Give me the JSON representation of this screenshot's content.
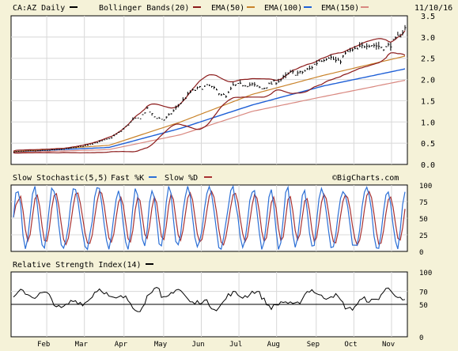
{
  "header": {
    "symbol_label": "CA:AZ Daily",
    "date": "11/10/16",
    "watermark": "©BigCharts.com"
  },
  "legend": {
    "price": [
      {
        "label": "Bollinger Bands(20)",
        "color": "#8b1a1a"
      },
      {
        "label": "EMA(50)",
        "color": "#c9832a"
      },
      {
        "label": "EMA(100)",
        "color": "#1e5fd6"
      },
      {
        "label": "EMA(150)",
        "color": "#d98880"
      }
    ],
    "stoch": {
      "title": "Slow Stochastic(5,5)",
      "fast_label": "Fast %K",
      "fast_color": "#2b6fd6",
      "slow_label": "Slow %D",
      "slow_color": "#a83232"
    },
    "rsi": {
      "title": "Relative Strength Index(14)",
      "color": "#000000"
    }
  },
  "months": [
    "Feb",
    "Mar",
    "Apr",
    "May",
    "Jun",
    "Jul",
    "Aug",
    "Sep",
    "Oct",
    "Nov"
  ],
  "chart_data": [
    {
      "type": "line",
      "name": "price-panel",
      "ylim": [
        0,
        3.5
      ],
      "yticks": [
        "0.0",
        "0.5",
        "1.0",
        "1.5",
        "2.0",
        "2.5",
        "3.0",
        "3.5"
      ],
      "grid": true,
      "x_ticks_months": [
        "Feb",
        "Mar",
        "Apr",
        "May",
        "Jun",
        "Jul",
        "Aug",
        "Sep",
        "Oct",
        "Nov"
      ],
      "price_waypoints": [
        [
          0,
          0.3
        ],
        [
          10,
          0.32
        ],
        [
          20,
          0.35
        ],
        [
          28,
          0.42
        ],
        [
          35,
          0.52
        ],
        [
          40,
          0.6
        ],
        [
          45,
          0.78
        ],
        [
          50,
          1.05
        ],
        [
          53,
          1.1
        ],
        [
          56,
          1.3
        ],
        [
          59,
          1.12
        ],
        [
          63,
          1.05
        ],
        [
          66,
          1.2
        ],
        [
          70,
          1.45
        ],
        [
          74,
          1.7
        ],
        [
          78,
          1.8
        ],
        [
          82,
          1.85
        ],
        [
          86,
          1.7
        ],
        [
          89,
          1.58
        ],
        [
          92,
          1.85
        ],
        [
          96,
          1.88
        ],
        [
          100,
          1.88
        ],
        [
          104,
          1.78
        ],
        [
          108,
          1.9
        ],
        [
          112,
          2.0
        ],
        [
          116,
          2.15
        ],
        [
          120,
          2.15
        ],
        [
          124,
          2.25
        ],
        [
          128,
          2.45
        ],
        [
          132,
          2.55
        ],
        [
          136,
          2.4
        ],
        [
          140,
          2.65
        ],
        [
          144,
          2.7
        ],
        [
          148,
          2.85
        ],
        [
          152,
          2.8
        ],
        [
          156,
          2.75
        ],
        [
          160,
          2.92
        ],
        [
          164,
          3.2
        ]
      ],
      "ema150_waypoints": [
        [
          0,
          0.28
        ],
        [
          40,
          0.35
        ],
        [
          70,
          0.7
        ],
        [
          100,
          1.25
        ],
        [
          130,
          1.6
        ],
        [
          164,
          1.98
        ]
      ],
      "ema100_waypoints": [
        [
          0,
          0.3
        ],
        [
          40,
          0.4
        ],
        [
          70,
          0.85
        ],
        [
          100,
          1.4
        ],
        [
          130,
          1.85
        ],
        [
          164,
          2.25
        ]
      ],
      "ema50_waypoints": [
        [
          0,
          0.3
        ],
        [
          40,
          0.45
        ],
        [
          70,
          1.0
        ],
        [
          100,
          1.65
        ],
        [
          130,
          2.1
        ],
        [
          164,
          2.55
        ]
      ]
    },
    {
      "type": "line",
      "name": "stochastic-panel",
      "ylim": [
        0,
        100
      ],
      "yticks": [
        "0",
        "25",
        "50",
        "75",
        "100"
      ],
      "grid": true,
      "series": [
        {
          "name": "Fast %K",
          "color": "#2b6fd6"
        },
        {
          "name": "Slow %D",
          "color": "#a83232"
        }
      ]
    },
    {
      "type": "line",
      "name": "rsi-panel",
      "ylim": [
        0,
        100
      ],
      "yticks": [
        "0",
        "50",
        "70",
        "100"
      ],
      "grid": true,
      "reference_levels": [
        50
      ],
      "series": [
        {
          "name": "Relative Strength Index(14)",
          "color": "#000000"
        }
      ]
    }
  ]
}
